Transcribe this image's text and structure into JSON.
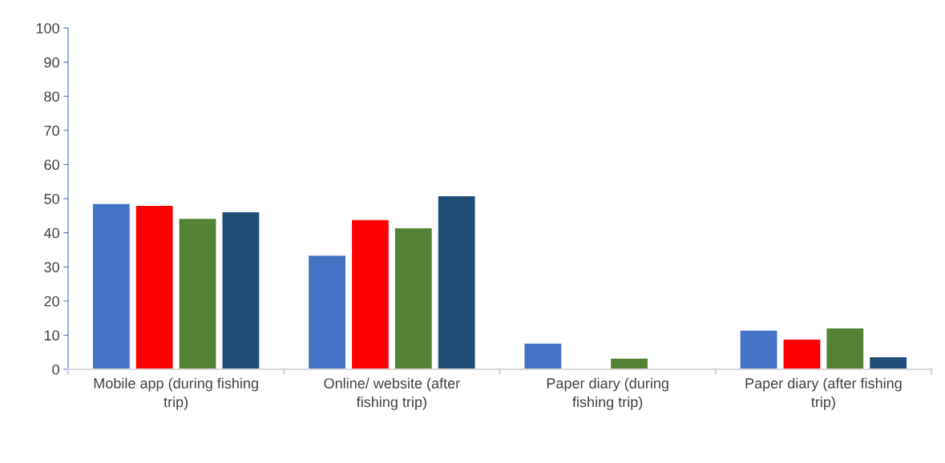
{
  "chart_data": {
    "type": "bar",
    "categories": [
      "Mobile app (during fishing trip)",
      "Online/ website (after fishing trip)",
      "Paper diary (during fishing trip)",
      "Paper diary (after fishing trip)"
    ],
    "series": [
      {
        "color": "#4472c4",
        "values": [
          48.4,
          33.3,
          7.5,
          11.3
        ]
      },
      {
        "color": "#ff0000",
        "values": [
          47.9,
          43.7,
          0,
          8.7
        ]
      },
      {
        "color": "#548235",
        "values": [
          44.1,
          41.3,
          3.1,
          12.0
        ]
      },
      {
        "color": "#1f4e79",
        "values": [
          46.0,
          50.7,
          0,
          3.5
        ]
      }
    ],
    "ylim": [
      0,
      100
    ],
    "yticks": [
      0,
      10,
      20,
      30,
      40,
      50,
      60,
      70,
      80,
      90,
      100
    ],
    "grid": false,
    "legend": false
  }
}
